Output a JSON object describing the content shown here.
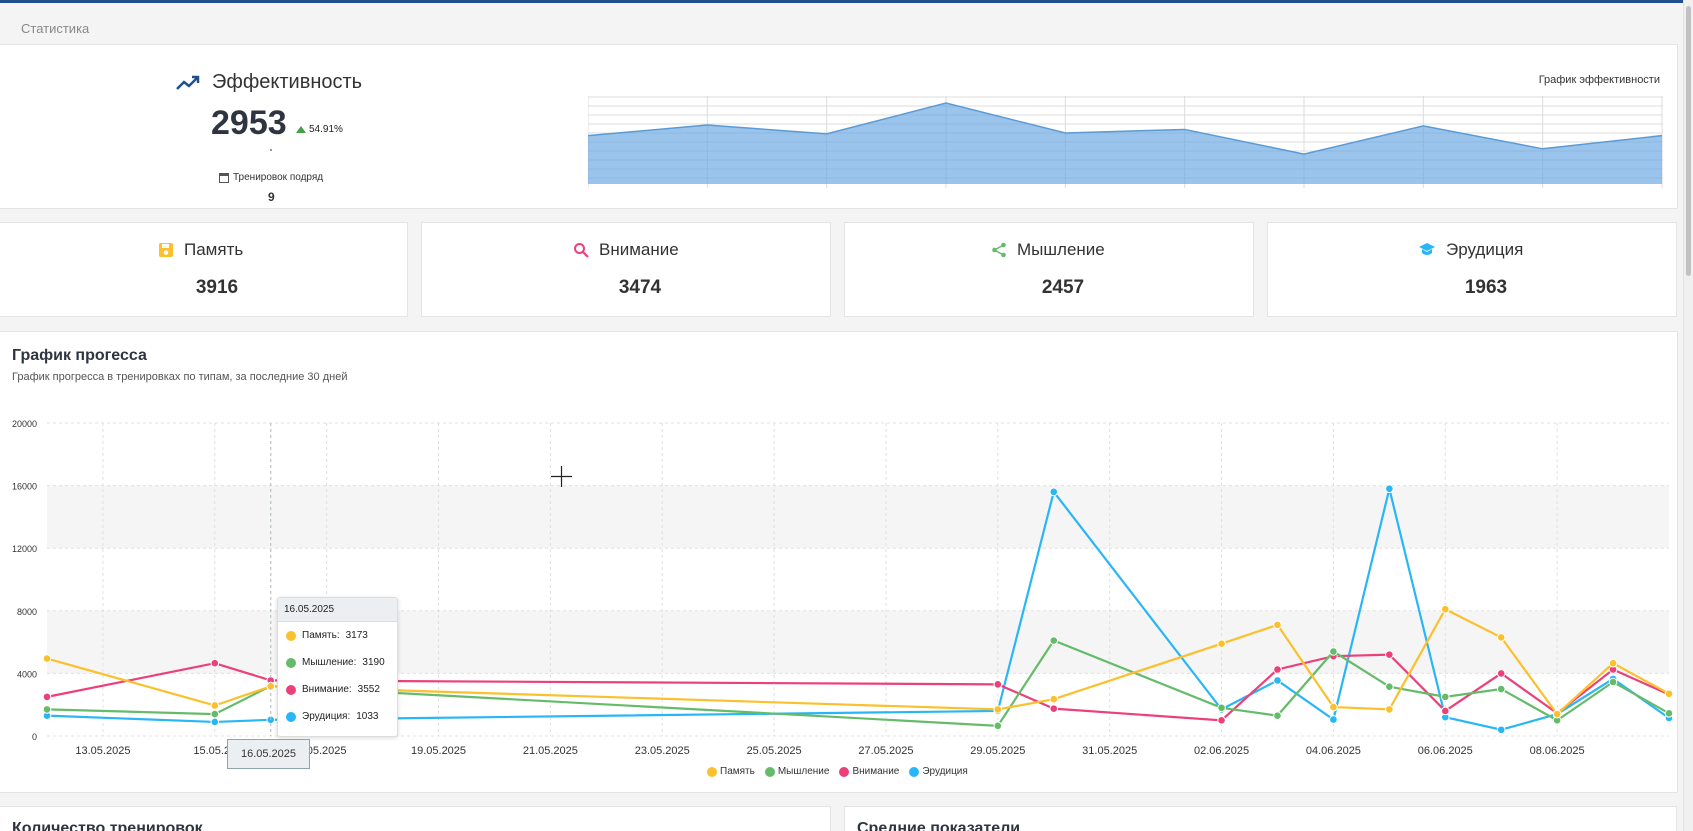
{
  "breadcrumb": "Статистика",
  "efficiency": {
    "title": "Эффективность",
    "value": "2953",
    "delta": "54.91%",
    "streak_label": "Тренировок подряд",
    "streak_value": "9",
    "mini_chart_title": "График эффективности",
    "mini_chart_values": [
      55,
      67,
      57,
      92,
      58,
      62,
      34,
      66,
      40,
      55
    ]
  },
  "categories": [
    {
      "label": "Память",
      "value": "3916",
      "icon": "floppy-disk-icon",
      "color": "#fbc02d"
    },
    {
      "label": "Внимание",
      "value": "3474",
      "icon": "magnifier-icon",
      "color": "#ec407a"
    },
    {
      "label": "Мышление",
      "value": "2457",
      "icon": "share-icon",
      "color": "#66bb6a"
    },
    {
      "label": "Эрудиция",
      "value": "1963",
      "icon": "graduation-cap-icon",
      "color": "#29b6f6"
    }
  ],
  "progress": {
    "title": "График прогесса",
    "subtitle": "График прогресса в тренировках по типам, за последние 30 дней"
  },
  "tooltip": {
    "date": "16.05.2025",
    "rows": [
      {
        "label": "Память:",
        "value": "3173",
        "color": "#fbc02d"
      },
      {
        "label": "Мышление:",
        "value": "3190",
        "color": "#66bb6a"
      },
      {
        "label": "Внимание:",
        "value": "3552",
        "color": "#ec407a"
      },
      {
        "label": "Эрудиция:",
        "value": "1033",
        "color": "#29b6f6"
      }
    ]
  },
  "x_tooltip": "16.05.2025",
  "chart_data": {
    "type": "line",
    "y_ticks": [
      "0",
      "4000",
      "8000",
      "12000",
      "16000",
      "20000"
    ],
    "ylim": [
      0,
      20000
    ],
    "x_tick_labels": [
      "13.05.2025",
      "15.05.20",
      "",
      "05.2025",
      "19.05.2025",
      "21.05.2025",
      "23.05.2025",
      "25.05.2025",
      "27.05.2025",
      "29.05.2025",
      "31.05.2025",
      "02.06.2025",
      "04.06.2025",
      "06.06.2025",
      "08.06.2025"
    ],
    "series": [
      {
        "name": "Память",
        "color": "#fbc02d",
        "x": [
          "12.05.2025",
          "15.05.2025",
          "16.05.2025",
          "29.05.2025",
          "30.05.2025",
          "02.06.2025",
          "03.06.2025",
          "04.06.2025",
          "05.06.2025",
          "06.06.2025",
          "07.06.2025",
          "08.06.2025",
          "09.06.2025",
          "10.06.2025"
        ],
        "values": [
          4950,
          1950,
          3173,
          1700,
          2350,
          5900,
          7100,
          1850,
          1700,
          8100,
          6300,
          1400,
          4650,
          2700
        ]
      },
      {
        "name": "Мышление",
        "color": "#66bb6a",
        "x": [
          "12.05.2025",
          "15.05.2025",
          "16.05.2025",
          "29.05.2025",
          "30.05.2025",
          "02.06.2025",
          "03.06.2025",
          "04.06.2025",
          "05.06.2025",
          "06.06.2025",
          "07.06.2025",
          "08.06.2025",
          "09.06.2025",
          "10.06.2025"
        ],
        "values": [
          1700,
          1400,
          3190,
          650,
          6100,
          1800,
          1300,
          5400,
          3150,
          2500,
          3000,
          1000,
          3450,
          1450
        ]
      },
      {
        "name": "Внимание",
        "color": "#ec407a",
        "x": [
          "12.05.2025",
          "15.05.2025",
          "16.05.2025",
          "29.05.2025",
          "30.05.2025",
          "02.06.2025",
          "03.06.2025",
          "04.06.2025",
          "05.06.2025",
          "06.06.2025",
          "07.06.2025",
          "08.06.2025",
          "09.06.2025",
          "10.06.2025"
        ],
        "values": [
          2500,
          4650,
          3552,
          3300,
          1750,
          1000,
          4250,
          5100,
          5200,
          1600,
          4000,
          1450,
          4250,
          2650
        ]
      },
      {
        "name": "Эрудиция",
        "color": "#29b6f6",
        "x": [
          "12.05.2025",
          "15.05.2025",
          "16.05.2025",
          "29.05.2025",
          "30.05.2025",
          "02.06.2025",
          "03.06.2025",
          "04.06.2025",
          "05.06.2025",
          "06.06.2025",
          "07.06.2025",
          "08.06.2025",
          "09.06.2025",
          "10.06.2025"
        ],
        "values": [
          1300,
          900,
          1033,
          1600,
          15600,
          1700,
          3550,
          1050,
          15800,
          1200,
          400,
          1400,
          3650,
          1150
        ]
      }
    ]
  },
  "legend": [
    "Память",
    "Мышление",
    "Внимание",
    "Эрудиция"
  ],
  "bottom_cards": [
    {
      "title": "Количество тренировок"
    },
    {
      "title": "Средние показатели"
    }
  ]
}
